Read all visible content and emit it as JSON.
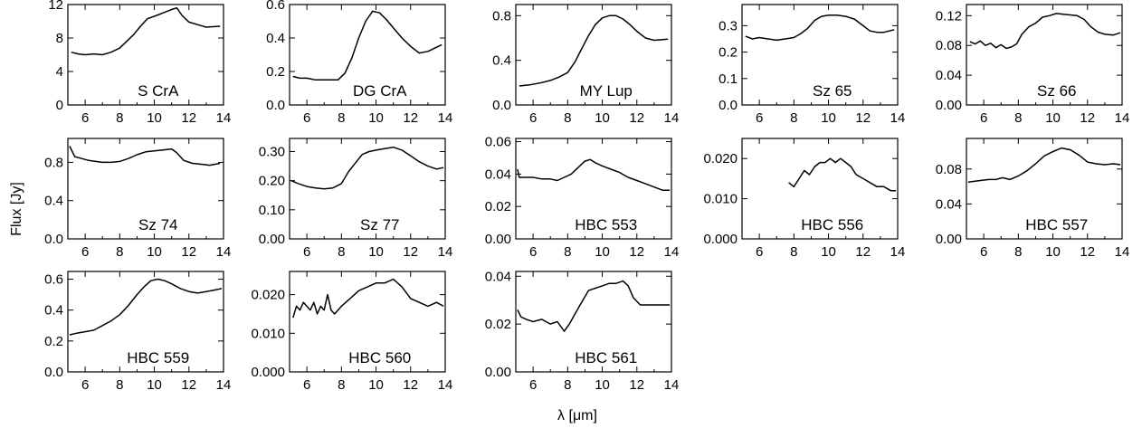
{
  "figure": {
    "xlabel": "λ [μm]",
    "ylabel": "Flux [Jy]"
  },
  "chart_data": [
    {
      "type": "line",
      "title": "S CrA",
      "xlim": [
        5,
        14
      ],
      "ylim": [
        0,
        12
      ],
      "yticks": [
        0,
        4,
        8,
        12
      ],
      "yticklabels": [
        "0",
        "4",
        "8",
        "12"
      ],
      "series": [
        {
          "x": [
            5.2,
            5.6,
            6.0,
            6.5,
            7.0,
            7.5,
            8.0,
            8.4,
            8.8,
            9.2,
            9.6,
            10.0,
            10.5,
            11.0,
            11.3,
            11.6,
            12.0,
            12.5,
            13.0,
            13.8
          ],
          "y": [
            6.3,
            6.1,
            6.0,
            6.1,
            6.0,
            6.3,
            6.8,
            7.6,
            8.4,
            9.4,
            10.3,
            10.6,
            11.0,
            11.4,
            11.6,
            10.7,
            9.9,
            9.6,
            9.3,
            9.4
          ]
        }
      ]
    },
    {
      "type": "line",
      "title": "DG CrA",
      "xlim": [
        5,
        14
      ],
      "ylim": [
        0,
        0.6
      ],
      "yticks": [
        0,
        0.2,
        0.4,
        0.6
      ],
      "yticklabels": [
        "0.0",
        "0.2",
        "0.4",
        "0.6"
      ],
      "series": [
        {
          "x": [
            5.2,
            5.6,
            6.0,
            6.5,
            7.0,
            7.5,
            7.8,
            8.2,
            8.6,
            9.0,
            9.4,
            9.8,
            10.2,
            10.6,
            11.0,
            11.5,
            12.0,
            12.5,
            13.0,
            13.8
          ],
          "y": [
            0.17,
            0.16,
            0.16,
            0.15,
            0.15,
            0.15,
            0.15,
            0.19,
            0.28,
            0.4,
            0.5,
            0.56,
            0.55,
            0.51,
            0.46,
            0.4,
            0.35,
            0.31,
            0.32,
            0.36
          ]
        }
      ]
    },
    {
      "type": "line",
      "title": "MY Lup",
      "xlim": [
        5,
        14
      ],
      "ylim": [
        0,
        0.9
      ],
      "yticks": [
        0,
        0.4,
        0.8
      ],
      "yticklabels": [
        "0.0",
        "0.4",
        "0.8"
      ],
      "series": [
        {
          "x": [
            5.2,
            5.8,
            6.5,
            7.0,
            7.5,
            8.0,
            8.4,
            8.8,
            9.2,
            9.6,
            10.0,
            10.4,
            10.8,
            11.2,
            11.6,
            12.0,
            12.5,
            13.0,
            13.8
          ],
          "y": [
            0.17,
            0.18,
            0.2,
            0.22,
            0.25,
            0.29,
            0.38,
            0.5,
            0.62,
            0.72,
            0.78,
            0.8,
            0.8,
            0.77,
            0.72,
            0.66,
            0.6,
            0.58,
            0.59
          ]
        }
      ]
    },
    {
      "type": "line",
      "title": "Sz 65",
      "xlim": [
        5,
        14
      ],
      "ylim": [
        0,
        0.38
      ],
      "yticks": [
        0,
        0.1,
        0.2,
        0.3
      ],
      "yticklabels": [
        "0.0",
        "0.1",
        "0.2",
        "0.3"
      ],
      "series": [
        {
          "x": [
            5.2,
            5.6,
            6.0,
            6.5,
            7.0,
            7.5,
            8.0,
            8.4,
            8.8,
            9.2,
            9.6,
            10.0,
            10.5,
            11.0,
            11.5,
            12.0,
            12.4,
            12.8,
            13.2,
            13.8
          ],
          "y": [
            0.26,
            0.25,
            0.255,
            0.25,
            0.245,
            0.25,
            0.255,
            0.27,
            0.29,
            0.32,
            0.335,
            0.34,
            0.34,
            0.335,
            0.325,
            0.3,
            0.28,
            0.275,
            0.275,
            0.285
          ]
        }
      ]
    },
    {
      "type": "line",
      "title": "Sz 66",
      "xlim": [
        5,
        14
      ],
      "ylim": [
        0,
        0.135
      ],
      "yticks": [
        0,
        0.04,
        0.08,
        0.12
      ],
      "yticklabels": [
        "0.00",
        "0.04",
        "0.08",
        "0.12"
      ],
      "series": [
        {
          "x": [
            5.2,
            5.5,
            5.8,
            6.1,
            6.4,
            6.7,
            7.0,
            7.3,
            7.6,
            7.9,
            8.2,
            8.6,
            9.0,
            9.4,
            9.8,
            10.2,
            10.6,
            11.0,
            11.4,
            11.8,
            12.2,
            12.6,
            13.0,
            13.5,
            13.9
          ],
          "y": [
            0.085,
            0.082,
            0.086,
            0.08,
            0.083,
            0.077,
            0.081,
            0.076,
            0.078,
            0.082,
            0.095,
            0.105,
            0.11,
            0.118,
            0.12,
            0.123,
            0.122,
            0.121,
            0.12,
            0.115,
            0.105,
            0.098,
            0.095,
            0.094,
            0.097
          ]
        }
      ]
    },
    {
      "type": "line",
      "title": "Sz 74",
      "xlim": [
        5,
        14
      ],
      "ylim": [
        0,
        1.05
      ],
      "yticks": [
        0,
        0.4,
        0.8
      ],
      "yticklabels": [
        "0.0",
        "0.4",
        "0.8"
      ],
      "series": [
        {
          "x": [
            5.1,
            5.4,
            5.8,
            6.2,
            6.6,
            7.0,
            7.5,
            8.0,
            8.5,
            9.0,
            9.5,
            10.0,
            10.5,
            11.0,
            11.3,
            11.7,
            12.2,
            12.7,
            13.2,
            13.8
          ],
          "y": [
            0.97,
            0.86,
            0.84,
            0.82,
            0.81,
            0.8,
            0.8,
            0.81,
            0.84,
            0.88,
            0.91,
            0.92,
            0.93,
            0.94,
            0.9,
            0.82,
            0.79,
            0.78,
            0.77,
            0.79
          ]
        }
      ]
    },
    {
      "type": "line",
      "title": "Sz 77",
      "xlim": [
        5,
        14
      ],
      "ylim": [
        0,
        0.345
      ],
      "yticks": [
        0,
        0.1,
        0.2,
        0.3
      ],
      "yticklabels": [
        "0.00",
        "0.10",
        "0.20",
        "0.30"
      ],
      "series": [
        {
          "x": [
            5.1,
            5.5,
            6.0,
            6.5,
            7.0,
            7.5,
            8.0,
            8.4,
            8.8,
            9.2,
            9.6,
            10.0,
            10.5,
            11.0,
            11.5,
            12.0,
            12.5,
            13.0,
            13.5,
            13.9
          ],
          "y": [
            0.2,
            0.19,
            0.18,
            0.175,
            0.172,
            0.175,
            0.19,
            0.23,
            0.26,
            0.29,
            0.3,
            0.305,
            0.31,
            0.315,
            0.305,
            0.285,
            0.265,
            0.25,
            0.24,
            0.245
          ]
        }
      ]
    },
    {
      "type": "line",
      "title": "HBC 553",
      "xlim": [
        5,
        14
      ],
      "ylim": [
        0,
        0.062
      ],
      "yticks": [
        0,
        0.02,
        0.04,
        0.06
      ],
      "yticklabels": [
        "0.00",
        "0.02",
        "0.04",
        "0.06"
      ],
      "series": [
        {
          "x": [
            5.1,
            5.2,
            5.6,
            6.0,
            6.5,
            7.0,
            7.4,
            7.8,
            8.2,
            8.6,
            9.0,
            9.3,
            9.6,
            10.0,
            10.5,
            11.0,
            11.5,
            12.0,
            12.5,
            13.0,
            13.5,
            13.9
          ],
          "y": [
            0.043,
            0.038,
            0.038,
            0.038,
            0.037,
            0.037,
            0.036,
            0.038,
            0.04,
            0.044,
            0.048,
            0.049,
            0.047,
            0.045,
            0.043,
            0.041,
            0.038,
            0.036,
            0.034,
            0.032,
            0.03,
            0.03
          ]
        }
      ]
    },
    {
      "type": "line",
      "title": "HBC 556",
      "xlim": [
        5,
        14
      ],
      "ylim": [
        0,
        0.025
      ],
      "yticks": [
        0,
        0.01,
        0.02
      ],
      "yticklabels": [
        "0.000",
        "0.010",
        "0.020"
      ],
      "series": [
        {
          "x": [
            7.7,
            8.0,
            8.3,
            8.6,
            8.9,
            9.2,
            9.5,
            9.8,
            10.1,
            10.4,
            10.7,
            11.0,
            11.3,
            11.6,
            12.0,
            12.4,
            12.8,
            13.2,
            13.6,
            13.9
          ],
          "y": [
            0.014,
            0.013,
            0.015,
            0.017,
            0.016,
            0.018,
            0.019,
            0.019,
            0.02,
            0.019,
            0.02,
            0.019,
            0.018,
            0.016,
            0.015,
            0.014,
            0.013,
            0.013,
            0.012,
            0.012
          ]
        }
      ]
    },
    {
      "type": "line",
      "title": "HBC 557",
      "xlim": [
        5,
        14
      ],
      "ylim": [
        0,
        0.115
      ],
      "yticks": [
        0,
        0.04,
        0.08
      ],
      "yticklabels": [
        "0.00",
        "0.04",
        "0.08"
      ],
      "series": [
        {
          "x": [
            5.1,
            5.5,
            5.9,
            6.3,
            6.7,
            7.1,
            7.5,
            8.0,
            8.5,
            9.0,
            9.5,
            10.0,
            10.5,
            11.0,
            11.5,
            12.0,
            12.5,
            13.0,
            13.5,
            13.9
          ],
          "y": [
            0.065,
            0.066,
            0.067,
            0.068,
            0.068,
            0.07,
            0.068,
            0.072,
            0.078,
            0.086,
            0.095,
            0.1,
            0.104,
            0.102,
            0.096,
            0.088,
            0.086,
            0.085,
            0.086,
            0.085
          ]
        }
      ]
    },
    {
      "type": "line",
      "title": "HBC 559",
      "xlim": [
        5,
        14
      ],
      "ylim": [
        0,
        0.65
      ],
      "yticks": [
        0,
        0.2,
        0.4,
        0.6
      ],
      "yticklabels": [
        "0.0",
        "0.2",
        "0.4",
        "0.6"
      ],
      "series": [
        {
          "x": [
            5.1,
            5.5,
            6.0,
            6.5,
            7.0,
            7.5,
            8.0,
            8.5,
            9.0,
            9.4,
            9.8,
            10.2,
            10.6,
            11.0,
            11.5,
            12.0,
            12.5,
            13.0,
            13.5,
            13.9
          ],
          "y": [
            0.24,
            0.25,
            0.26,
            0.27,
            0.3,
            0.33,
            0.37,
            0.43,
            0.5,
            0.55,
            0.59,
            0.6,
            0.59,
            0.57,
            0.54,
            0.52,
            0.51,
            0.52,
            0.53,
            0.54
          ]
        }
      ]
    },
    {
      "type": "line",
      "title": "HBC 560",
      "xlim": [
        5,
        14
      ],
      "ylim": [
        0,
        0.026
      ],
      "yticks": [
        0,
        0.01,
        0.02
      ],
      "yticklabels": [
        "0.000",
        "0.010",
        "0.020"
      ],
      "series": [
        {
          "x": [
            5.2,
            5.4,
            5.6,
            5.8,
            6.0,
            6.2,
            6.4,
            6.6,
            6.8,
            7.0,
            7.2,
            7.4,
            7.6,
            8.0,
            8.5,
            9.0,
            9.5,
            10.0,
            10.5,
            11.0,
            11.5,
            12.0,
            12.5,
            13.0,
            13.5,
            13.9
          ],
          "y": [
            0.014,
            0.017,
            0.016,
            0.018,
            0.017,
            0.016,
            0.018,
            0.015,
            0.017,
            0.016,
            0.02,
            0.016,
            0.015,
            0.017,
            0.019,
            0.021,
            0.022,
            0.023,
            0.023,
            0.024,
            0.022,
            0.019,
            0.018,
            0.017,
            0.018,
            0.017
          ]
        }
      ]
    },
    {
      "type": "line",
      "title": "HBC 561",
      "xlim": [
        5,
        14
      ],
      "ylim": [
        0,
        0.042
      ],
      "yticks": [
        0,
        0.02,
        0.04
      ],
      "yticklabels": [
        "0.00",
        "0.02",
        "0.04"
      ],
      "series": [
        {
          "x": [
            5.1,
            5.3,
            5.6,
            6.0,
            6.5,
            7.0,
            7.4,
            7.8,
            8.1,
            8.4,
            8.8,
            9.2,
            9.6,
            10.0,
            10.4,
            10.8,
            11.2,
            11.5,
            11.8,
            12.2,
            12.6,
            13.0,
            13.5,
            13.9
          ],
          "y": [
            0.026,
            0.023,
            0.022,
            0.021,
            0.022,
            0.02,
            0.021,
            0.017,
            0.02,
            0.024,
            0.029,
            0.034,
            0.035,
            0.036,
            0.037,
            0.037,
            0.038,
            0.036,
            0.031,
            0.028,
            0.028,
            0.028,
            0.028,
            0.028
          ]
        }
      ]
    }
  ]
}
